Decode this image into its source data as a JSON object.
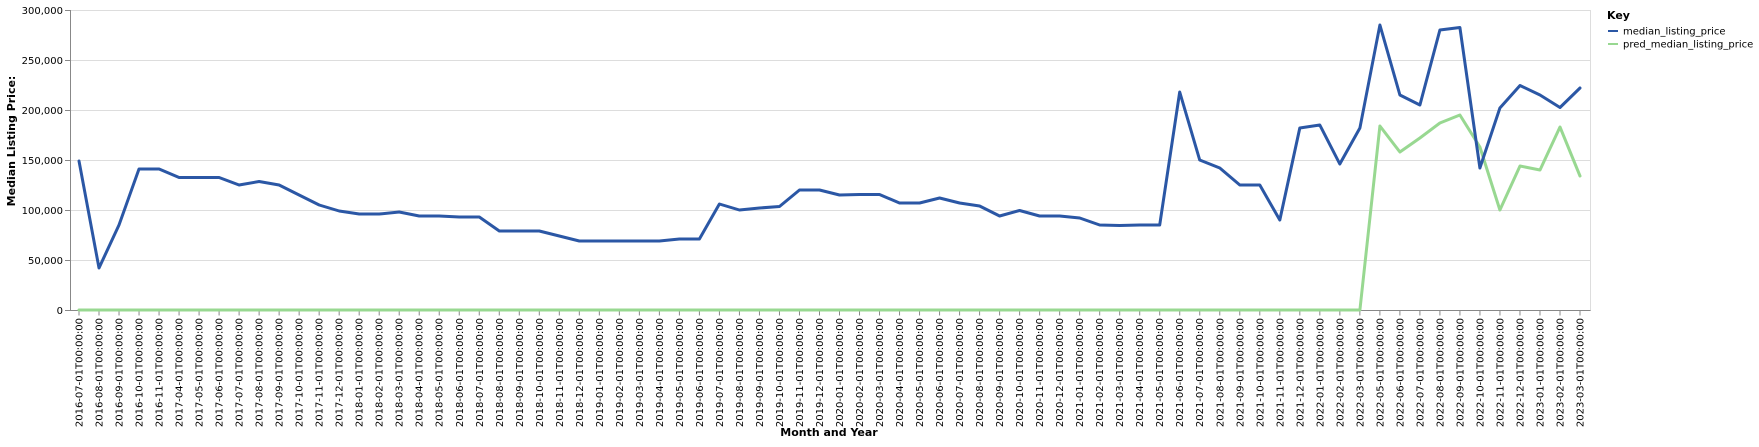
{
  "chart_data": {
    "type": "line",
    "xlabel": "Month and Year",
    "ylabel": "Median Listing Price:",
    "ylim": [
      0,
      300000
    ],
    "yticks": [
      "0",
      "50,000",
      "100,000",
      "150,000",
      "200,000",
      "250,000",
      "300,000"
    ],
    "ytick_values": [
      0,
      50000,
      100000,
      150000,
      200000,
      250000,
      300000
    ],
    "grid": true,
    "legend": {
      "title": "Key",
      "placement": "top-right"
    },
    "categories": [
      "2016-07-01T00:00:00",
      "2016-08-01T00:00:00",
      "2016-09-01T00:00:00",
      "2016-10-01T00:00:00",
      "2016-11-01T00:00:00",
      "2017-04-01T00:00:00",
      "2017-05-01T00:00:00",
      "2017-06-01T00:00:00",
      "2017-07-01T00:00:00",
      "2017-08-01T00:00:00",
      "2017-09-01T00:00:00",
      "2017-10-01T00:00:00",
      "2017-11-01T00:00:00",
      "2017-12-01T00:00:00",
      "2018-01-01T00:00:00",
      "2018-02-01T00:00:00",
      "2018-03-01T00:00:00",
      "2018-04-01T00:00:00",
      "2018-05-01T00:00:00",
      "2018-06-01T00:00:00",
      "2018-07-01T00:00:00",
      "2018-08-01T00:00:00",
      "2018-09-01T00:00:00",
      "2018-10-01T00:00:00",
      "2018-11-01T00:00:00",
      "2018-12-01T00:00:00",
      "2019-01-01T00:00:00",
      "2019-02-01T00:00:00",
      "2019-03-01T00:00:00",
      "2019-04-01T00:00:00",
      "2019-05-01T00:00:00",
      "2019-06-01T00:00:00",
      "2019-07-01T00:00:00",
      "2019-08-01T00:00:00",
      "2019-09-01T00:00:00",
      "2019-10-01T00:00:00",
      "2019-11-01T00:00:00",
      "2019-12-01T00:00:00",
      "2020-01-01T00:00:00",
      "2020-02-01T00:00:00",
      "2020-03-01T00:00:00",
      "2020-04-01T00:00:00",
      "2020-05-01T00:00:00",
      "2020-06-01T00:00:00",
      "2020-07-01T00:00:00",
      "2020-08-01T00:00:00",
      "2020-09-01T00:00:00",
      "2020-10-01T00:00:00",
      "2020-11-01T00:00:00",
      "2020-12-01T00:00:00",
      "2021-01-01T00:00:00",
      "2021-02-01T00:00:00",
      "2021-03-01T00:00:00",
      "2021-04-01T00:00:00",
      "2021-05-01T00:00:00",
      "2021-06-01T00:00:00",
      "2021-07-01T00:00:00",
      "2021-08-01T00:00:00",
      "2021-09-01T00:00:00",
      "2021-10-01T00:00:00",
      "2021-11-01T00:00:00",
      "2021-12-01T00:00:00",
      "2022-01-01T00:00:00",
      "2022-02-01T00:00:00",
      "2022-03-01T00:00:00",
      "2022-05-01T00:00:00",
      "2022-06-01T00:00:00",
      "2022-07-01T00:00:00",
      "2022-08-01T00:00:00",
      "2022-09-01T00:00:00",
      "2022-10-01T00:00:00",
      "2022-11-01T00:00:00",
      "2022-12-01T00:00:00",
      "2023-01-01T00:00:00",
      "2023-02-01T00:00:00",
      "2023-03-01T00:00:00"
    ],
    "series": [
      {
        "name": "median_listing_price",
        "color": "#2b57a5",
        "values": [
          149000,
          42000,
          85000,
          141000,
          141000,
          132500,
          132500,
          132500,
          125000,
          128500,
          125000,
          115000,
          105000,
          99000,
          96000,
          96000,
          98000,
          94000,
          94000,
          93000,
          93000,
          79000,
          79000,
          79000,
          74000,
          69000,
          69000,
          69000,
          69000,
          69000,
          71000,
          71000,
          106000,
          100000,
          102000,
          103500,
          120000,
          120000,
          115000,
          115500,
          115500,
          107000,
          107000,
          112000,
          107000,
          104000,
          94000,
          99500,
          94000,
          94000,
          92000,
          85000,
          84500,
          85000,
          85000,
          218000,
          150000,
          142000,
          125000,
          125000,
          90000,
          182000,
          185000,
          146000,
          182000,
          285000,
          215000,
          205000,
          280000,
          282500,
          142000,
          202000,
          224500,
          215000,
          202500,
          222000
        ]
      },
      {
        "name": "pred_median_listing_price",
        "color": "#98d891",
        "values": [
          0,
          0,
          0,
          0,
          0,
          0,
          0,
          0,
          0,
          0,
          0,
          0,
          0,
          0,
          0,
          0,
          0,
          0,
          0,
          0,
          0,
          0,
          0,
          0,
          0,
          0,
          0,
          0,
          0,
          0,
          0,
          0,
          0,
          0,
          0,
          0,
          0,
          0,
          0,
          0,
          0,
          0,
          0,
          0,
          0,
          0,
          0,
          0,
          0,
          0,
          0,
          0,
          0,
          0,
          0,
          0,
          0,
          0,
          0,
          0,
          0,
          0,
          0,
          0,
          0,
          184000,
          158000,
          172000,
          187000,
          195000,
          163000,
          100000,
          144000,
          140000,
          183000,
          134000
        ]
      }
    ]
  }
}
